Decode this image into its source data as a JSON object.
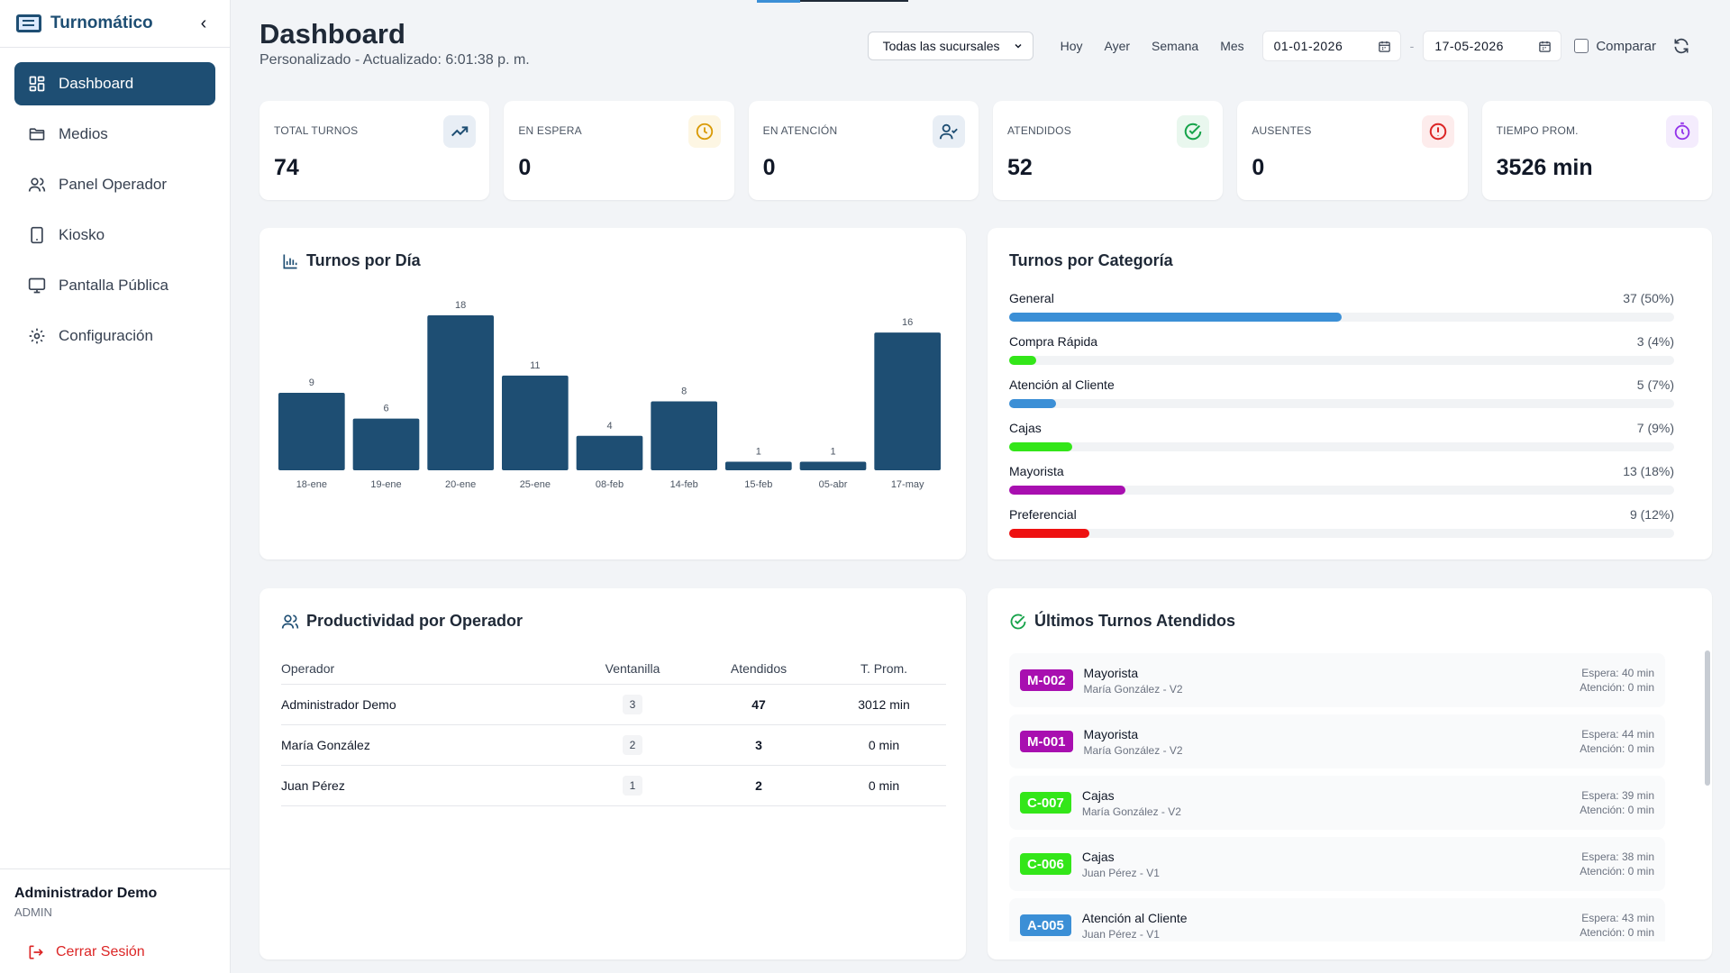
{
  "app": {
    "name": "Turnomático"
  },
  "sidebar": {
    "items": [
      {
        "label": "Dashboard",
        "icon": "dashboard-icon",
        "active": true
      },
      {
        "label": "Medios",
        "icon": "folder-icon"
      },
      {
        "label": "Panel Operador",
        "icon": "users-icon"
      },
      {
        "label": "Kiosko",
        "icon": "tablet-icon"
      },
      {
        "label": "Pantalla Pública",
        "icon": "monitor-icon"
      },
      {
        "label": "Configuración",
        "icon": "gear-icon"
      }
    ],
    "user": {
      "name": "Administrador Demo",
      "role": "ADMIN"
    },
    "logout_label": "Cerrar Sesión"
  },
  "header": {
    "title": "Dashboard",
    "subtitle": "Personalizado - Actualizado: 6:01:38 p. m."
  },
  "filters": {
    "branch": "Todas las sucursales",
    "ranges": [
      "Hoy",
      "Ayer",
      "Semana",
      "Mes"
    ],
    "date_from": "01-01-2026",
    "date_sep": "-",
    "date_to": "17-05-2026",
    "compare_label": "Comparar"
  },
  "kpis": [
    {
      "label": "TOTAL TURNOS",
      "value": "74",
      "icon": "trending-up-icon",
      "color": "#1e4e73",
      "bg": "#e8eef5"
    },
    {
      "label": "EN ESPERA",
      "value": "0",
      "icon": "clock-icon",
      "color": "#d99a06",
      "bg": "#fdf6e3"
    },
    {
      "label": "EN ATENCIÓN",
      "value": "0",
      "icon": "user-check-icon",
      "color": "#1e4e73",
      "bg": "#e8eef5"
    },
    {
      "label": "ATENDIDOS",
      "value": "52",
      "icon": "check-circle-icon",
      "color": "#16a34a",
      "bg": "#e9f7ee"
    },
    {
      "label": "AUSENTES",
      "value": "0",
      "icon": "alert-circle-icon",
      "color": "#dc2626",
      "bg": "#fdecec"
    },
    {
      "label": "TIEMPO PROM.",
      "value": "3526 min",
      "icon": "timer-icon",
      "color": "#9333ea",
      "bg": "#f4ecfd"
    }
  ],
  "daily": {
    "title": "Turnos por Día"
  },
  "chart_data": {
    "type": "bar",
    "categories": [
      "18-ene",
      "19-ene",
      "20-ene",
      "25-ene",
      "08-feb",
      "14-feb",
      "15-feb",
      "05-abr",
      "17-may"
    ],
    "values": [
      9,
      6,
      18,
      11,
      4,
      8,
      1,
      1,
      16
    ],
    "title": "Turnos por Día",
    "xlabel": "",
    "ylabel": "",
    "ylim": [
      0,
      18
    ],
    "color": "#1e4e73",
    "grid": false
  },
  "categories": {
    "title": "Turnos por Categoría",
    "items": [
      {
        "name": "General",
        "count": "37 (50%)",
        "pct": 50,
        "color": "#3b8fd6"
      },
      {
        "name": "Compra Rápida",
        "count": "3 (4%)",
        "pct": 4,
        "color": "#33e619"
      },
      {
        "name": "Atención al Cliente",
        "count": "5 (7%)",
        "pct": 7,
        "color": "#3b8fd6"
      },
      {
        "name": "Cajas",
        "count": "7 (9%)",
        "pct": 9.5,
        "color": "#33e619"
      },
      {
        "name": "Mayorista",
        "count": "13 (18%)",
        "pct": 17.5,
        "color": "#a80fb0"
      },
      {
        "name": "Preferencial",
        "count": "9 (12%)",
        "pct": 12,
        "color": "#ee1111"
      }
    ]
  },
  "operators": {
    "title": "Productividad por Operador",
    "columns": [
      "Operador",
      "Ventanilla",
      "Atendidos",
      "T. Prom."
    ],
    "rows": [
      {
        "name": "Administrador Demo",
        "window": "3",
        "attended": "47",
        "avg": "3012 min"
      },
      {
        "name": "María González",
        "window": "2",
        "attended": "3",
        "avg": "0 min"
      },
      {
        "name": "Juan Pérez",
        "window": "1",
        "attended": "2",
        "avg": "0 min"
      }
    ]
  },
  "latest": {
    "title": "Últimos Turnos Atendidos",
    "items": [
      {
        "ticket": "M-002",
        "color": "#a80fb0",
        "category": "Mayorista",
        "operator": "María González - V2",
        "wait": "Espera: 40 min",
        "attention": "Atención: 0 min"
      },
      {
        "ticket": "M-001",
        "color": "#a80fb0",
        "category": "Mayorista",
        "operator": "María González - V2",
        "wait": "Espera: 44 min",
        "attention": "Atención: 0 min"
      },
      {
        "ticket": "C-007",
        "color": "#33e619",
        "category": "Cajas",
        "operator": "María González - V2",
        "wait": "Espera: 39 min",
        "attention": "Atención: 0 min"
      },
      {
        "ticket": "C-006",
        "color": "#33e619",
        "category": "Cajas",
        "operator": "Juan Pérez - V1",
        "wait": "Espera: 38 min",
        "attention": "Atención: 0 min"
      },
      {
        "ticket": "A-005",
        "color": "#3b8fd6",
        "category": "Atención al Cliente",
        "operator": "Juan Pérez - V1",
        "wait": "Espera: 43 min",
        "attention": "Atención: 0 min"
      }
    ]
  }
}
